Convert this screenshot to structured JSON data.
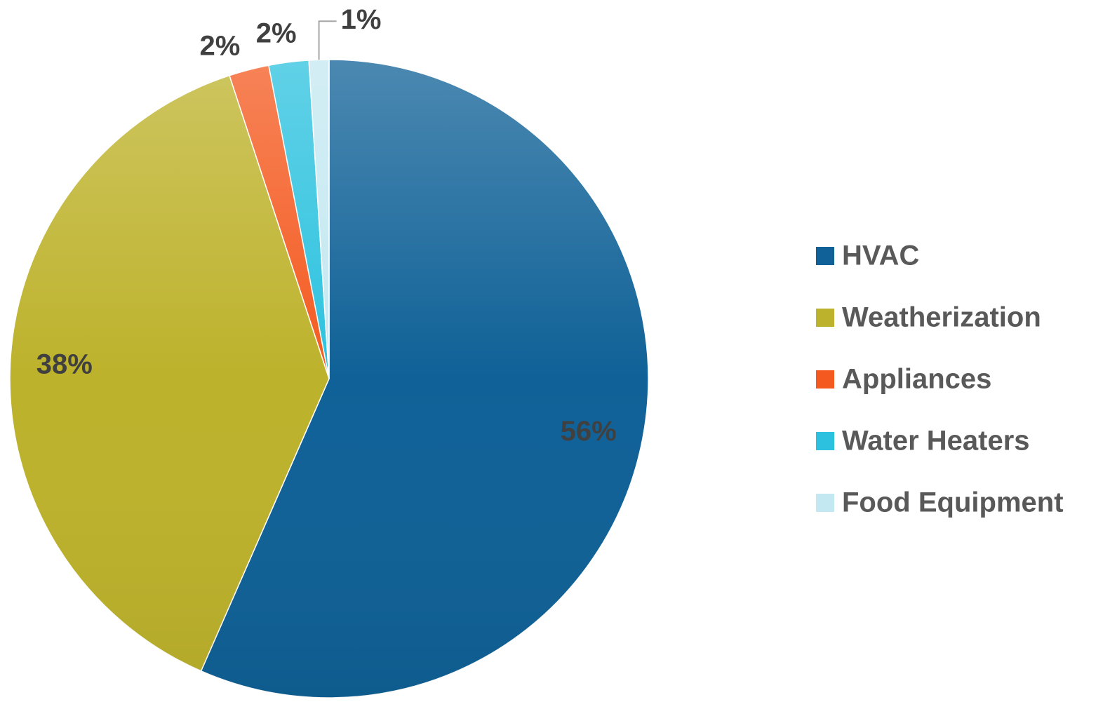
{
  "chart_data": {
    "type": "pie",
    "categories": [
      "HVAC",
      "Weatherization",
      "Appliances",
      "Water Heaters",
      "Food Equipment"
    ],
    "values": [
      56,
      38,
      2,
      2,
      1
    ],
    "value_labels": [
      "56%",
      "38%",
      "2%",
      "2%",
      "1%"
    ],
    "colors": [
      "#0f6197",
      "#bdb22b",
      "#f45a20",
      "#2cc2df",
      "#c4e8f1"
    ],
    "legend": "right"
  }
}
